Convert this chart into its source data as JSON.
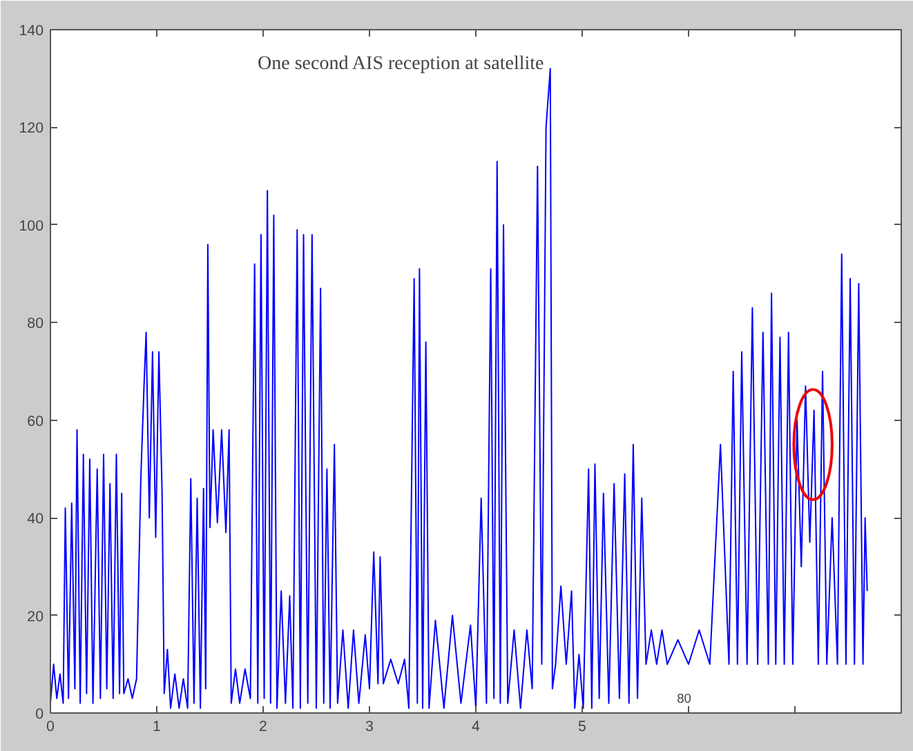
{
  "chart_data": {
    "type": "line",
    "title": "One second AIS reception at satellite",
    "x": [
      0.0,
      0.03,
      0.06,
      0.09,
      0.12,
      0.14,
      0.17,
      0.2,
      0.23,
      0.25,
      0.28,
      0.31,
      0.34,
      0.37,
      0.4,
      0.44,
      0.47,
      0.5,
      0.53,
      0.56,
      0.59,
      0.62,
      0.65,
      0.67,
      0.69,
      0.73,
      0.77,
      0.81,
      0.85,
      0.88,
      0.9,
      0.93,
      0.96,
      0.99,
      1.02,
      1.05,
      1.07,
      1.1,
      1.13,
      1.17,
      1.21,
      1.25,
      1.29,
      1.32,
      1.35,
      1.38,
      1.41,
      1.44,
      1.46,
      1.48,
      1.5,
      1.53,
      1.57,
      1.61,
      1.65,
      1.68,
      1.7,
      1.74,
      1.78,
      1.83,
      1.88,
      1.92,
      1.95,
      1.98,
      2.01,
      2.04,
      2.07,
      2.1,
      2.13,
      2.17,
      2.21,
      2.25,
      2.28,
      2.32,
      2.35,
      2.38,
      2.42,
      2.46,
      2.5,
      2.54,
      2.57,
      2.6,
      2.63,
      2.67,
      2.7,
      2.75,
      2.8,
      2.85,
      2.9,
      2.96,
      3.0,
      3.04,
      3.08,
      3.1,
      3.13,
      3.2,
      3.27,
      3.33,
      3.37,
      3.42,
      3.45,
      3.47,
      3.5,
      3.53,
      3.56,
      3.62,
      3.7,
      3.78,
      3.86,
      3.95,
      4.0,
      4.05,
      4.1,
      4.14,
      4.17,
      4.2,
      4.23,
      4.26,
      4.3,
      4.36,
      4.42,
      4.48,
      4.53,
      4.58,
      4.62,
      4.66,
      4.7,
      4.72,
      4.75,
      4.8,
      4.85,
      4.9,
      4.93,
      4.97,
      5.01,
      5.06,
      5.09,
      5.12,
      5.16,
      5.2,
      5.25,
      5.3,
      5.35,
      5.4,
      5.44,
      5.48,
      5.52,
      5.56,
      5.6,
      5.65,
      5.7,
      5.75,
      5.8,
      5.9,
      6.0,
      6.1,
      6.2,
      6.3,
      6.38,
      6.42,
      6.46,
      6.5,
      6.55,
      6.6,
      6.65,
      6.7,
      6.75,
      6.78,
      6.82,
      6.86,
      6.9,
      6.94,
      6.98,
      7.02,
      7.06,
      7.1,
      7.14,
      7.18,
      7.22,
      7.26,
      7.3,
      7.35,
      7.4,
      7.44,
      7.48,
      7.52,
      7.56,
      7.6,
      7.64,
      7.66,
      7.68
    ],
    "series": [
      {
        "color": "#0000ff",
        "values": [
          2,
          10,
          3,
          8,
          2,
          42,
          3,
          43,
          5,
          58,
          2,
          53,
          4,
          52,
          2,
          50,
          3,
          53,
          5,
          47,
          3,
          53,
          4,
          45,
          4,
          7,
          3,
          7,
          48,
          67,
          78,
          40,
          74,
          36,
          74,
          45,
          4,
          13,
          1,
          8,
          1,
          7,
          1,
          48,
          2,
          44,
          1,
          46,
          5,
          96,
          38,
          58,
          39,
          58,
          37,
          58,
          2,
          9,
          2,
          9,
          3,
          92,
          2,
          98,
          3,
          107,
          2,
          102,
          1,
          25,
          2,
          24,
          1,
          99,
          1,
          98,
          2,
          98,
          1,
          87,
          2,
          50,
          1,
          55,
          2,
          17,
          1,
          17,
          2,
          16,
          5,
          33,
          6,
          32,
          6,
          11,
          6,
          11,
          1,
          89,
          2,
          91,
          1,
          76,
          1,
          19,
          1,
          20,
          2,
          18,
          1,
          44,
          2,
          91,
          3,
          113,
          2,
          100,
          2,
          17,
          1,
          17,
          5,
          112,
          10,
          120,
          132,
          5,
          10,
          26,
          10,
          25,
          1,
          12,
          1,
          50,
          1,
          51,
          3,
          45,
          2,
          47,
          3,
          49,
          2,
          55,
          3,
          44,
          10,
          17,
          10,
          17,
          10,
          15,
          10,
          17,
          10,
          55,
          10,
          70,
          10,
          74,
          10,
          83,
          10,
          78,
          10,
          86,
          10,
          77,
          10,
          78,
          10,
          60,
          30,
          67,
          35,
          62,
          10,
          70,
          10,
          40,
          10,
          94,
          10,
          89,
          10,
          88,
          10,
          40,
          25
        ]
      }
    ],
    "xlim": [
      0,
      8
    ],
    "ylim": [
      0,
      140
    ],
    "xticks": [
      0,
      1,
      2,
      3,
      4,
      5,
      {
        "value": 6,
        "label": null
      },
      {
        "value": 7,
        "label": null
      }
    ],
    "yticks": [
      0,
      20,
      40,
      60,
      80,
      100,
      120,
      140
    ],
    "grid": false,
    "line_style": "solid",
    "marker": "none",
    "annotations": [
      "80"
    ]
  }
}
